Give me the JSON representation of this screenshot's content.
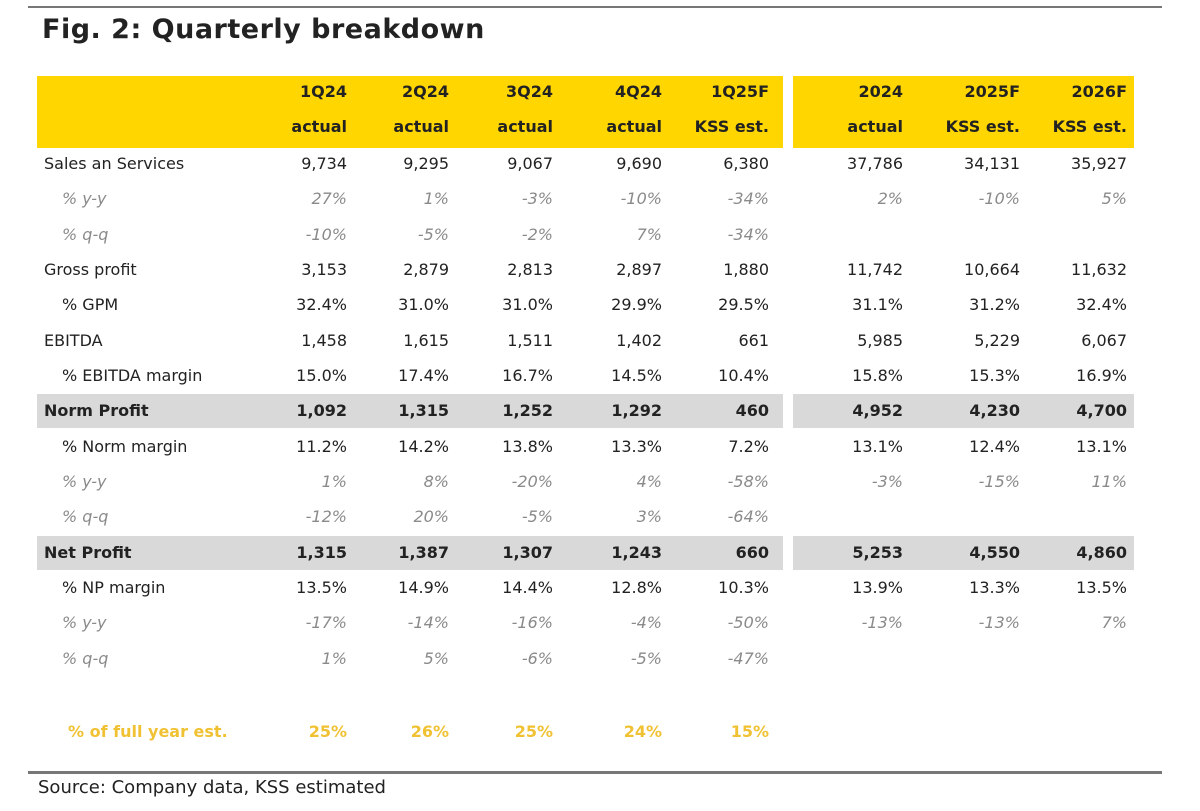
{
  "title": "Fig. 2: Quarterly breakdown",
  "source": "Source: Company data, KSS estimated",
  "colors": {
    "header_band": "#ffd600",
    "highlight_row": "#d9d9d9",
    "full_year_text": "#f0c233",
    "muted_text": "#8a8a8a"
  },
  "header": {
    "periods": [
      "1Q24",
      "2Q24",
      "3Q24",
      "4Q24",
      "1Q25F",
      "2024",
      "2025F",
      "2026F"
    ],
    "basis": [
      "actual",
      "actual",
      "actual",
      "actual",
      "KSS est.",
      "actual",
      "KSS est.",
      "KSS est."
    ]
  },
  "rows": [
    {
      "label": "Sales an Services",
      "style": "normal",
      "values": [
        "9,734",
        "9,295",
        "9,067",
        "9,690",
        "6,380",
        "37,786",
        "34,131",
        "35,927"
      ]
    },
    {
      "label": "% y-y",
      "style": "italic",
      "values": [
        "27%",
        "1%",
        "-3%",
        "-10%",
        "-34%",
        "2%",
        "-10%",
        "5%"
      ]
    },
    {
      "label": "% q-q",
      "style": "italic",
      "values": [
        "-10%",
        "-5%",
        "-2%",
        "7%",
        "-34%",
        "",
        "",
        ""
      ]
    },
    {
      "label": "Gross profit",
      "style": "normal",
      "values": [
        "3,153",
        "2,879",
        "2,813",
        "2,897",
        "1,880",
        "11,742",
        "10,664",
        "11,632"
      ]
    },
    {
      "label": "% GPM",
      "style": "sub",
      "values": [
        "32.4%",
        "31.0%",
        "31.0%",
        "29.9%",
        "29.5%",
        "31.1%",
        "31.2%",
        "32.4%"
      ]
    },
    {
      "label": "EBITDA",
      "style": "normal",
      "values": [
        "1,458",
        "1,615",
        "1,511",
        "1,402",
        "661",
        "5,985",
        "5,229",
        "6,067"
      ]
    },
    {
      "label": "% EBITDA margin",
      "style": "sub",
      "values": [
        "15.0%",
        "17.4%",
        "16.7%",
        "14.5%",
        "10.4%",
        "15.8%",
        "15.3%",
        "16.9%"
      ]
    },
    {
      "label": "Norm Profit",
      "style": "highlight",
      "values": [
        "1,092",
        "1,315",
        "1,252",
        "1,292",
        "460",
        "4,952",
        "4,230",
        "4,700"
      ]
    },
    {
      "label": "% Norm margin",
      "style": "sub",
      "values": [
        "11.2%",
        "14.2%",
        "13.8%",
        "13.3%",
        "7.2%",
        "13.1%",
        "12.4%",
        "13.1%"
      ]
    },
    {
      "label": "% y-y",
      "style": "italic",
      "values": [
        "1%",
        "8%",
        "-20%",
        "4%",
        "-58%",
        "-3%",
        "-15%",
        "11%"
      ]
    },
    {
      "label": "% q-q",
      "style": "italic",
      "values": [
        "-12%",
        "20%",
        "-5%",
        "3%",
        "-64%",
        "",
        "",
        ""
      ]
    },
    {
      "label": "Net Profit",
      "style": "highlight",
      "values": [
        "1,315",
        "1,387",
        "1,307",
        "1,243",
        "660",
        "5,253",
        "4,550",
        "4,860"
      ]
    },
    {
      "label": "% NP margin",
      "style": "sub",
      "values": [
        "13.5%",
        "14.9%",
        "14.4%",
        "12.8%",
        "10.3%",
        "13.9%",
        "13.3%",
        "13.5%"
      ]
    },
    {
      "label": "% y-y",
      "style": "italic",
      "values": [
        "-17%",
        "-14%",
        "-16%",
        "-4%",
        "-50%",
        "-13%",
        "-13%",
        "7%"
      ]
    },
    {
      "label": "% q-q",
      "style": "italic",
      "values": [
        "1%",
        "5%",
        "-6%",
        "-5%",
        "-47%",
        "",
        "",
        ""
      ]
    }
  ],
  "full_year": {
    "label": "% of full year est.",
    "values": [
      "25%",
      "26%",
      "25%",
      "24%",
      "15%"
    ]
  }
}
